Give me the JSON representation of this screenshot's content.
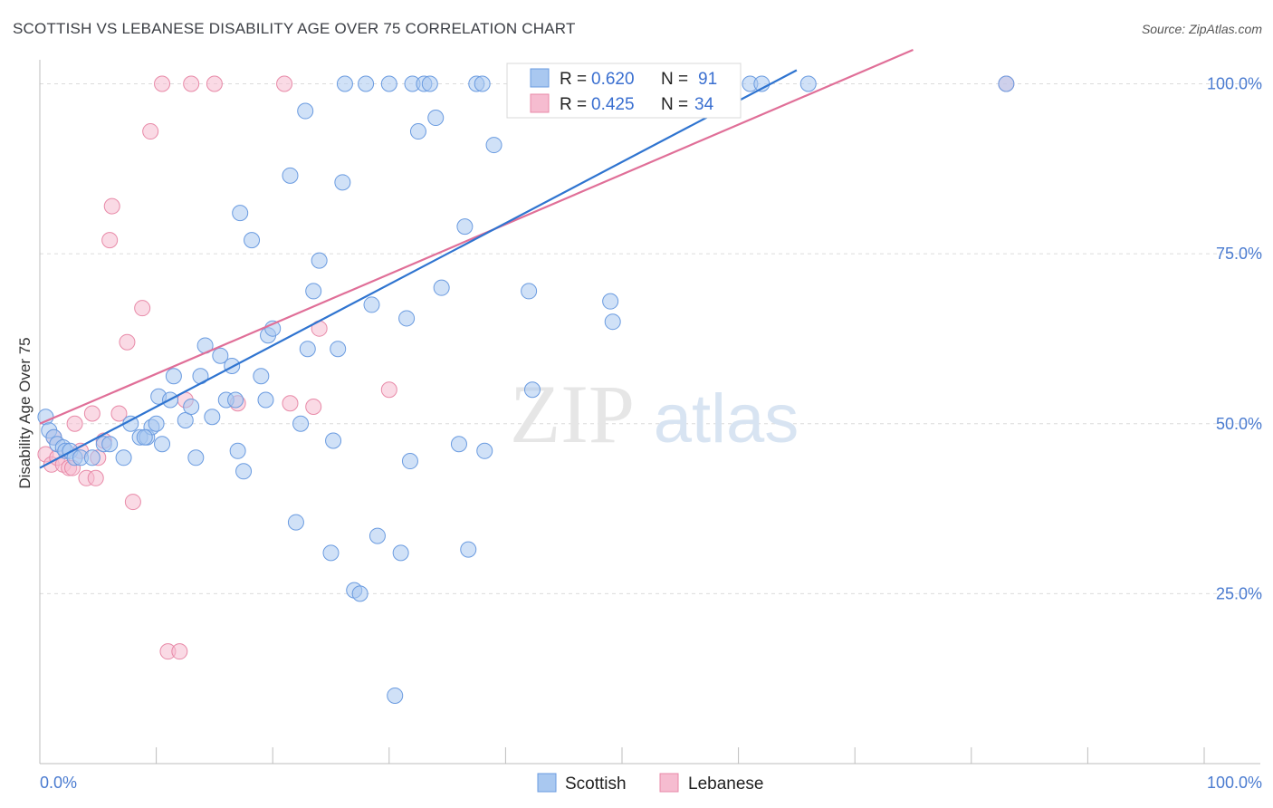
{
  "header": {
    "title": "SCOTTISH VS LEBANESE DISABILITY AGE OVER 75 CORRELATION CHART",
    "source": "Source: ZipAtlas.com"
  },
  "watermark": {
    "zip": "ZIP",
    "atlas": "atlas"
  },
  "colors": {
    "scottish_fill": "#a9c8f0",
    "scottish_stroke": "#6a9be0",
    "scottish_line": "#2f74d0",
    "lebanese_fill": "#f6bcd0",
    "lebanese_stroke": "#e88aa8",
    "lebanese_line": "#e06f98",
    "tick_text": "#4a7bd0",
    "grid": "#dcdcdc"
  },
  "legend": {
    "r_label": "R =",
    "n_label": "N =",
    "entries": [
      {
        "r": "0.620",
        "n": "91"
      },
      {
        "r": "0.425",
        "n": "34"
      }
    ]
  },
  "bottom_legend": [
    "Scottish",
    "Lebanese"
  ],
  "chart_data": {
    "type": "scatter",
    "title": "SCOTTISH VS LEBANESE DISABILITY AGE OVER 75 CORRELATION CHART",
    "xlabel": "",
    "ylabel": "Disability Age Over 75",
    "xlim": [
      0,
      100
    ],
    "ylim": [
      0,
      105
    ],
    "x_tick_labels": [
      "0.0%",
      "100.0%"
    ],
    "y_ticks": [
      25,
      50,
      75,
      100
    ],
    "y_tick_labels": [
      "25.0%",
      "50.0%",
      "75.0%",
      "100.0%"
    ],
    "grid": true,
    "legend_position": "top-center",
    "series": [
      {
        "name": "Scottish",
        "r": 0.62,
        "n": 91,
        "trend": [
          [
            0,
            43.5
          ],
          [
            65,
            102
          ]
        ],
        "points": [
          [
            0.5,
            51
          ],
          [
            0.8,
            49
          ],
          [
            1.2,
            48
          ],
          [
            1.5,
            47
          ],
          [
            2,
            46.5
          ],
          [
            2.2,
            46
          ],
          [
            2.6,
            46
          ],
          [
            3,
            45
          ],
          [
            3.5,
            45
          ],
          [
            4.5,
            45
          ],
          [
            5.5,
            47
          ],
          [
            6,
            47
          ],
          [
            7.2,
            45
          ],
          [
            7.8,
            50
          ],
          [
            8.6,
            48
          ],
          [
            9.2,
            48
          ],
          [
            9.6,
            49.5
          ],
          [
            10,
            50
          ],
          [
            10.5,
            47
          ],
          [
            10.2,
            54
          ],
          [
            11.2,
            53.5
          ],
          [
            11.5,
            57
          ],
          [
            12.5,
            50.5
          ],
          [
            13,
            52.5
          ],
          [
            13.8,
            57
          ],
          [
            14.2,
            61.5
          ],
          [
            14.8,
            51
          ],
          [
            15.5,
            60
          ],
          [
            16,
            53.5
          ],
          [
            16.5,
            58.5
          ],
          [
            17,
            46
          ],
          [
            17.5,
            43
          ],
          [
            17.2,
            81
          ],
          [
            18.2,
            77
          ],
          [
            19,
            57
          ],
          [
            19.4,
            53.5
          ],
          [
            19.6,
            63
          ],
          [
            20,
            64
          ],
          [
            21.5,
            86.5
          ],
          [
            22,
            35.5
          ],
          [
            22.4,
            50
          ],
          [
            22.8,
            96
          ],
          [
            23,
            61
          ],
          [
            23.5,
            69.5
          ],
          [
            24,
            74
          ],
          [
            25,
            31
          ],
          [
            25.2,
            47.5
          ],
          [
            25.6,
            61
          ],
          [
            26,
            85.5
          ],
          [
            26.2,
            100
          ],
          [
            27,
            25.5
          ],
          [
            27.5,
            25
          ],
          [
            28,
            100
          ],
          [
            28.5,
            67.5
          ],
          [
            29,
            33.5
          ],
          [
            30.5,
            10
          ],
          [
            31.5,
            65.5
          ],
          [
            31.8,
            44.5
          ],
          [
            32,
            100
          ],
          [
            32.5,
            93
          ],
          [
            33,
            100
          ],
          [
            33.5,
            100
          ],
          [
            34,
            95
          ],
          [
            34.5,
            70
          ],
          [
            36,
            47
          ],
          [
            36.5,
            79
          ],
          [
            36.8,
            31.5
          ],
          [
            37.5,
            100
          ],
          [
            38,
            100
          ],
          [
            38.2,
            46
          ],
          [
            39,
            91
          ],
          [
            41,
            100
          ],
          [
            41.5,
            100
          ],
          [
            42,
            69.5
          ],
          [
            42.3,
            55
          ],
          [
            43,
            100
          ],
          [
            46,
            100
          ],
          [
            49,
            68
          ],
          [
            49.2,
            65
          ],
          [
            50,
            100
          ],
          [
            55,
            100
          ],
          [
            59,
            100
          ],
          [
            61,
            100
          ],
          [
            62,
            100
          ],
          [
            66,
            100
          ],
          [
            83,
            100
          ],
          [
            16.8,
            53.5
          ],
          [
            30,
            100
          ],
          [
            13.4,
            45
          ],
          [
            9,
            48
          ],
          [
            31,
            31
          ]
        ]
      },
      {
        "name": "Lebanese",
        "r": 0.425,
        "n": 34,
        "trend": [
          [
            0,
            50
          ],
          [
            75,
            105
          ]
        ],
        "points": [
          [
            0.5,
            45.5
          ],
          [
            1,
            44
          ],
          [
            1.5,
            45
          ],
          [
            2,
            44
          ],
          [
            2.5,
            43.5
          ],
          [
            3,
            50
          ],
          [
            3.5,
            46
          ],
          [
            4,
            42
          ],
          [
            4.5,
            51.5
          ],
          [
            4.8,
            42
          ],
          [
            5,
            45
          ],
          [
            5.5,
            47.5
          ],
          [
            6,
            77
          ],
          [
            6.2,
            82
          ],
          [
            6.8,
            51.5
          ],
          [
            7.5,
            62
          ],
          [
            8,
            38.5
          ],
          [
            8.8,
            67
          ],
          [
            9.5,
            93
          ],
          [
            10.5,
            100
          ],
          [
            11,
            16.5
          ],
          [
            12,
            16.5
          ],
          [
            12.5,
            53.5
          ],
          [
            13,
            100
          ],
          [
            15,
            100
          ],
          [
            17,
            53
          ],
          [
            21,
            100
          ],
          [
            21.5,
            53
          ],
          [
            23.5,
            52.5
          ],
          [
            24,
            64
          ],
          [
            30,
            55
          ],
          [
            83,
            100
          ],
          [
            2.8,
            43.5
          ],
          [
            1.2,
            48
          ]
        ]
      }
    ]
  }
}
